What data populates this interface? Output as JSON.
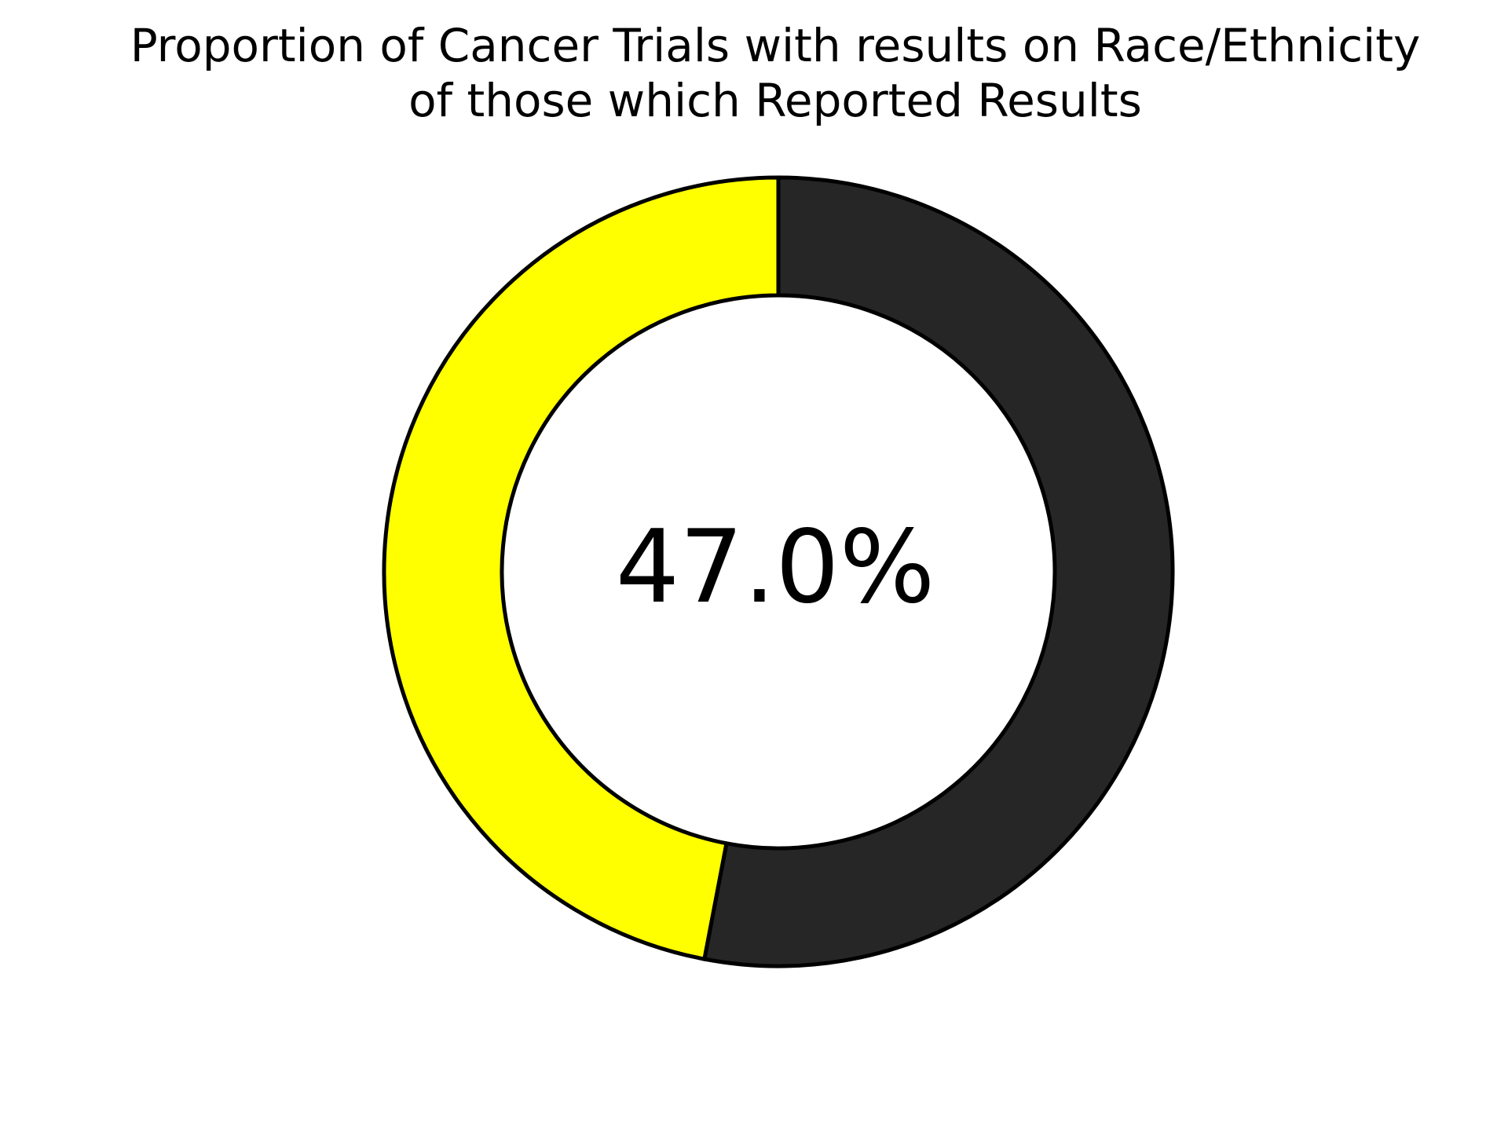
{
  "chart_data": {
    "type": "pie",
    "title": "Proportion of Cancer Trials with results on Race/Ethnicity\nof those which Reported Results",
    "title_lines": [
      "Proportion of Cancer Trials with results on Race/Ethnicity",
      "of those which Reported Results"
    ],
    "center_label": "47.0%",
    "slices": [
      {
        "value": 47.0,
        "color": "#ffff00"
      },
      {
        "value": 53.0,
        "color": "#262626"
      }
    ],
    "start": "12 o'clock, counterclockwise",
    "style": "donut",
    "edge_color": "#000000",
    "legend": "none"
  }
}
